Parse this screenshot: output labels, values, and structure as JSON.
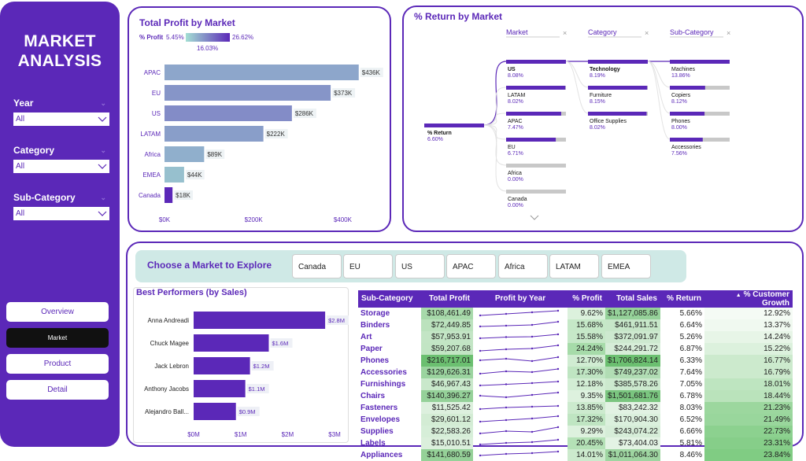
{
  "app": {
    "title": "MARKET\nANALYSIS"
  },
  "filters": [
    {
      "label": "Year",
      "value": "All"
    },
    {
      "label": "Category",
      "value": "All"
    },
    {
      "label": "Sub-Category",
      "value": "All"
    }
  ],
  "nav": [
    {
      "label": "Overview",
      "active": false
    },
    {
      "label": "Market",
      "active": true
    },
    {
      "label": "Product",
      "active": false
    },
    {
      "label": "Detail",
      "active": false
    }
  ],
  "profit_chart": {
    "title": "Total Profit by Market",
    "legend_label": "% Profit",
    "legend_min": "5.45%",
    "legend_max": "26.62%",
    "legend_mid": "16.03%",
    "x_ticks": [
      "$0K",
      "$200K",
      "$400K"
    ]
  },
  "return_tree": {
    "title": "% Return by Market",
    "col_headers": [
      "Market",
      "Category",
      "Sub-Category"
    ],
    "root": {
      "label": "% Return",
      "value": "6.60%"
    },
    "markets": [
      {
        "label": "US",
        "value": "8.08%",
        "fill": 1.0
      },
      {
        "label": "LATAM",
        "value": "8.02%",
        "fill": 0.99
      },
      {
        "label": "APAC",
        "value": "7.47%",
        "fill": 0.92
      },
      {
        "label": "EU",
        "value": "6.71%",
        "fill": 0.83
      },
      {
        "label": "Africa",
        "value": "0.00%",
        "fill": 0.0
      },
      {
        "label": "Canada",
        "value": "0.00%",
        "fill": 0.0
      }
    ],
    "categories": [
      {
        "label": "Technology",
        "value": "8.19%",
        "fill": 1.0
      },
      {
        "label": "Furniture",
        "value": "8.15%",
        "fill": 0.99
      },
      {
        "label": "Office Supplies",
        "value": "8.02%",
        "fill": 0.98
      }
    ],
    "subcategories": [
      {
        "label": "Machines",
        "value": "13.86%",
        "fill": 1.0
      },
      {
        "label": "Copiers",
        "value": "8.12%",
        "fill": 0.59
      },
      {
        "label": "Phones",
        "value": "8.00%",
        "fill": 0.58
      },
      {
        "label": "Accessories",
        "value": "7.56%",
        "fill": 0.55
      }
    ]
  },
  "explore": {
    "title": "Choose a Market to Explore",
    "markets": [
      "Canada",
      "EU",
      "US",
      "APAC",
      "Africa",
      "LATAM",
      "EMEA"
    ]
  },
  "performers": {
    "title": "Best Performers (by Sales)",
    "x_ticks": [
      "$0M",
      "$1M",
      "$2M",
      "$3M"
    ]
  },
  "table": {
    "headers": [
      "Sub-Category",
      "Total Profit",
      "Profit by Year",
      "% Profit",
      "Total Sales",
      "% Return",
      "% Customer Growth"
    ],
    "rows": [
      {
        "name": "Storage",
        "profit": "$108,461.49",
        "pct_profit": "9.62%",
        "sales": "$1,127,085.86",
        "ret": "5.66%",
        "growth": "12.92%",
        "spark": [
          0.1,
          0.3,
          0.5,
          0.7
        ]
      },
      {
        "name": "Binders",
        "profit": "$72,449.85",
        "pct_profit": "15.68%",
        "sales": "$461,911.51",
        "ret": "6.64%",
        "growth": "13.37%",
        "spark": [
          0.2,
          0.3,
          0.4,
          0.8
        ]
      },
      {
        "name": "Art",
        "profit": "$57,953.91",
        "pct_profit": "15.58%",
        "sales": "$372,091.97",
        "ret": "5.26%",
        "growth": "14.24%",
        "spark": [
          0.2,
          0.35,
          0.4,
          0.7
        ]
      },
      {
        "name": "Paper",
        "profit": "$59,207.68",
        "pct_profit": "24.24%",
        "sales": "$244,291.72",
        "ret": "6.87%",
        "growth": "15.22%",
        "spark": [
          0.1,
          0.3,
          0.4,
          0.8
        ]
      },
      {
        "name": "Phones",
        "profit": "$216,717.01",
        "pct_profit": "12.70%",
        "sales": "$1,706,824.14",
        "ret": "6.33%",
        "growth": "16.77%",
        "spark": [
          0.4,
          0.6,
          0.3,
          0.8
        ]
      },
      {
        "name": "Accessories",
        "profit": "$129,626.31",
        "pct_profit": "17.30%",
        "sales": "$749,237.02",
        "ret": "7.64%",
        "growth": "16.79%",
        "spark": [
          0.2,
          0.5,
          0.4,
          0.8
        ]
      },
      {
        "name": "Furnishings",
        "profit": "$46,967.43",
        "pct_profit": "12.18%",
        "sales": "$385,578.26",
        "ret": "7.05%",
        "growth": "18.01%",
        "spark": [
          0.2,
          0.35,
          0.5,
          0.7
        ]
      },
      {
        "name": "Chairs",
        "profit": "$140,396.27",
        "pct_profit": "9.35%",
        "sales": "$1,501,681.76",
        "ret": "6.78%",
        "growth": "18.44%",
        "spark": [
          0.4,
          0.2,
          0.5,
          0.8
        ]
      },
      {
        "name": "Fasteners",
        "profit": "$11,525.42",
        "pct_profit": "13.85%",
        "sales": "$83,242.32",
        "ret": "8.03%",
        "growth": "21.23%",
        "spark": [
          0.2,
          0.4,
          0.5,
          0.6
        ]
      },
      {
        "name": "Envelopes",
        "profit": "$29,601.12",
        "pct_profit": "17.32%",
        "sales": "$170,904.30",
        "ret": "6.52%",
        "growth": "21.49%",
        "spark": [
          0.1,
          0.3,
          0.5,
          0.8
        ]
      },
      {
        "name": "Supplies",
        "profit": "$22,583.26",
        "pct_profit": "9.29%",
        "sales": "$243,074.22",
        "ret": "6.66%",
        "growth": "22.73%",
        "spark": [
          0.1,
          0.4,
          0.3,
          0.9
        ]
      },
      {
        "name": "Labels",
        "profit": "$15,010.51",
        "pct_profit": "20.45%",
        "sales": "$73,404.03",
        "ret": "5.81%",
        "growth": "23.31%",
        "spark": [
          0.2,
          0.4,
          0.5,
          0.8
        ]
      },
      {
        "name": "Appliances",
        "profit": "$141,680.59",
        "pct_profit": "14.01%",
        "sales": "$1,011,064.30",
        "ret": "8.46%",
        "growth": "23.84%",
        "spark": [
          0.3,
          0.5,
          0.6,
          0.8
        ]
      }
    ]
  },
  "colors": {
    "brand": "#5b28b8",
    "teal": "#a3dfd3",
    "green": "#66bb6a"
  },
  "chart_data": [
    {
      "type": "bar",
      "orientation": "horizontal",
      "title": "Total Profit by Market",
      "categories": [
        "APAC",
        "EU",
        "US",
        "LATAM",
        "Africa",
        "EMEA",
        "Canada"
      ],
      "values": [
        436,
        373,
        286,
        222,
        89,
        44,
        18
      ],
      "labels": [
        "$436K",
        "$373K",
        "$286K",
        "$222K",
        "$89K",
        "$44K",
        "$18K"
      ],
      "pct_profit": [
        0.12,
        0.14,
        0.15,
        0.13,
        0.11,
        0.09,
        0.2662
      ],
      "xlim": [
        0,
        470
      ]
    },
    {
      "type": "bar",
      "orientation": "horizontal",
      "title": "Best Performers (by Sales)",
      "categories": [
        "Anna Andreadi",
        "Chuck Magee",
        "Jack Lebron",
        "Anthony Jacobs",
        "Alejandro Ball..."
      ],
      "values": [
        2.8,
        1.6,
        1.2,
        1.1,
        0.9
      ],
      "labels": [
        "$2.8M",
        "$1.6M",
        "$1.2M",
        "$1.1M",
        "$0.9M"
      ],
      "xlim": [
        0,
        3.1
      ]
    }
  ]
}
